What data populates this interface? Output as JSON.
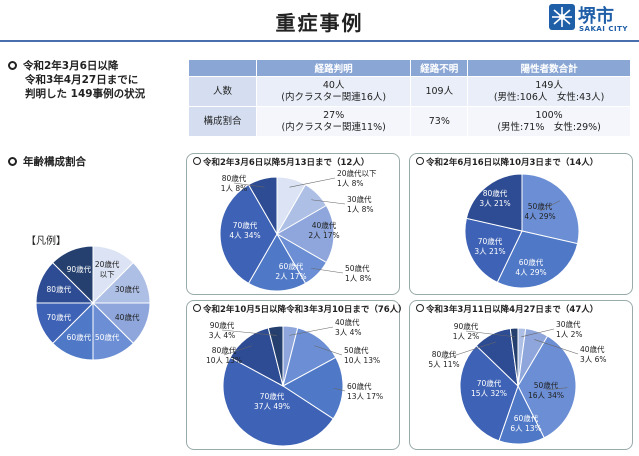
{
  "header": {
    "title": "重症事例",
    "logo_text": "堺市",
    "logo_sub": "SAKAI CITY"
  },
  "summary": {
    "line1": "令和2年3月6日以降",
    "line2": "令和3年4月27日までに",
    "line3": "判明した 149事例の状況"
  },
  "table": {
    "headers": [
      "",
      "経路判明",
      "経路不明",
      "陽性者数合計"
    ],
    "rows": [
      {
        "label": "人数",
        "c1a": "40人",
        "c1b": "(内クラスター関連16人)",
        "c2": "109人",
        "c3a": "149人",
        "c3b": "(男性:106人　女性:43人)"
      },
      {
        "label": "構成割合",
        "c1a": "27%",
        "c1b": "(内クラスター関連11%)",
        "c2": "73%",
        "c3a": "100%",
        "c3b": "(男性:71%　女性:29%)"
      }
    ]
  },
  "age_heading": "年齢構成割合",
  "legend": {
    "title": "【凡例】",
    "items": [
      "20歳代以下",
      "30歳代",
      "40歳代",
      "50歳代",
      "60歳代",
      "70歳代",
      "80歳代",
      "90歳代"
    ],
    "colors": [
      "#dbe3f4",
      "#aebfe6",
      "#8ea6db",
      "#6b8ed4",
      "#4f78c6",
      "#3e62b5",
      "#2e4c93",
      "#25406e"
    ]
  },
  "panels": [
    {
      "title": "令和2年3月6日以降5月13日まで（12人）",
      "chart_data": {
        "type": "pie",
        "categories": [
          "20歳代以下",
          "30歳代",
          "40歳代",
          "50歳代",
          "60歳代",
          "70歳代",
          "80歳代"
        ],
        "values": [
          1,
          1,
          2,
          1,
          2,
          4,
          1
        ],
        "percent": [
          8,
          8,
          17,
          8,
          17,
          34,
          8
        ]
      },
      "labels": [
        "20歳代以下|1人 8%",
        "30歳代|1人 8%",
        "40歳代|2人 17%",
        "50歳代|1人 8%",
        "60歳代|2人 17%",
        "70歳代|4人 34%",
        "80歳代|1人 8%"
      ]
    },
    {
      "title": "令和2年6月16日以降10月3日まで（14人）",
      "chart_data": {
        "type": "pie",
        "categories": [
          "50歳代",
          "60歳代",
          "70歳代",
          "80歳代"
        ],
        "values": [
          4,
          4,
          3,
          3
        ],
        "percent": [
          29,
          29,
          21,
          21
        ]
      },
      "labels": [
        "50歳代|4人 29%",
        "60歳代|4人 29%",
        "70歳代|3人 21%",
        "80歳代|3人 21%"
      ]
    },
    {
      "title": "令和2年10月5日以降令和3年3月10日まで（76人）",
      "chart_data": {
        "type": "pie",
        "categories": [
          "40歳代",
          "50歳代",
          "60歳代",
          "70歳代",
          "80歳代",
          "90歳代"
        ],
        "values": [
          3,
          10,
          13,
          37,
          10,
          3
        ],
        "percent": [
          4,
          13,
          17,
          49,
          13,
          4
        ]
      },
      "labels": [
        "40歳代|3人 4%",
        "50歳代|10人 13%",
        "60歳代|13人 17%",
        "70歳代|37人 49%",
        "80歳代|10人 13%",
        "90歳代|3人 4%"
      ]
    },
    {
      "title": "令和3年3月11日以降4月27日まで（47人）",
      "chart_data": {
        "type": "pie",
        "categories": [
          "30歳代",
          "40歳代",
          "50歳代",
          "60歳代",
          "70歳代",
          "80歳代",
          "90歳代"
        ],
        "values": [
          1,
          3,
          16,
          6,
          15,
          5,
          1
        ],
        "percent": [
          2,
          6,
          34,
          13,
          32,
          11,
          2
        ]
      },
      "labels": [
        "30歳代|1人 2%",
        "40歳代|3人 6%",
        "50歳代|16人 34%",
        "60歳代|6人 13%",
        "70歳代|15人 32%",
        "80歳代|5人 11%",
        "90歳代|1人 2%"
      ]
    }
  ]
}
